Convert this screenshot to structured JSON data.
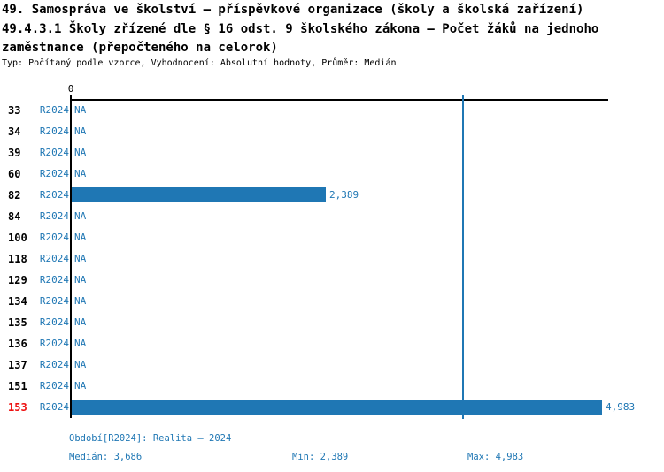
{
  "header": {
    "title_line1": "49. Samospráva ve školství – příspěvkové organizace (školy a školská zařízení)",
    "title_line2": "49.4.3.1 Školy zřízené dle § 16 odst. 9 školského zákona – Počet žáků na jednoho",
    "title_line3": "zaměstnance (přepočteného na celorok)",
    "subtitle": "Typ: Počítaný podle vzorce, Vyhodnocení: Absolutní hodnoty, Průměr: Medián"
  },
  "chart_data": {
    "type": "bar",
    "orientation": "horizontal",
    "xlim": [
      0,
      5050
    ],
    "x_ticks": [
      {
        "value": 0,
        "label": "0"
      }
    ],
    "series_name": "R2024",
    "categories": [
      "33",
      "34",
      "39",
      "60",
      "82",
      "84",
      "100",
      "118",
      "129",
      "134",
      "135",
      "136",
      "137",
      "151",
      "153"
    ],
    "rows": [
      {
        "category": "33",
        "period": "R2024",
        "value": null,
        "value_label": "NA",
        "highlight": false
      },
      {
        "category": "34",
        "period": "R2024",
        "value": null,
        "value_label": "NA",
        "highlight": false
      },
      {
        "category": "39",
        "period": "R2024",
        "value": null,
        "value_label": "NA",
        "highlight": false
      },
      {
        "category": "60",
        "period": "R2024",
        "value": null,
        "value_label": "NA",
        "highlight": false
      },
      {
        "category": "82",
        "period": "R2024",
        "value": 2389,
        "value_label": "2,389",
        "highlight": false
      },
      {
        "category": "84",
        "period": "R2024",
        "value": null,
        "value_label": "NA",
        "highlight": false
      },
      {
        "category": "100",
        "period": "R2024",
        "value": null,
        "value_label": "NA",
        "highlight": false
      },
      {
        "category": "118",
        "period": "R2024",
        "value": null,
        "value_label": "NA",
        "highlight": false
      },
      {
        "category": "129",
        "period": "R2024",
        "value": null,
        "value_label": "NA",
        "highlight": false
      },
      {
        "category": "134",
        "period": "R2024",
        "value": null,
        "value_label": "NA",
        "highlight": false
      },
      {
        "category": "135",
        "period": "R2024",
        "value": null,
        "value_label": "NA",
        "highlight": false
      },
      {
        "category": "136",
        "period": "R2024",
        "value": null,
        "value_label": "NA",
        "highlight": false
      },
      {
        "category": "137",
        "period": "R2024",
        "value": null,
        "value_label": "NA",
        "highlight": false
      },
      {
        "category": "151",
        "period": "R2024",
        "value": null,
        "value_label": "NA",
        "highlight": false
      },
      {
        "category": "153",
        "period": "R2024",
        "value": 4983,
        "value_label": "4,983",
        "highlight": true
      }
    ],
    "median": {
      "value": 3686,
      "label": "3,686"
    },
    "min": {
      "value": 2389,
      "label": "2,389"
    },
    "max": {
      "value": 4983,
      "label": "4,983"
    }
  },
  "colors": {
    "bar_blue": "#1f77b4",
    "text_blue": "#1f77b4",
    "highlight_red": "#ee1111",
    "axis_black": "#000000",
    "median_line_blue": "#1f77b4"
  },
  "footer": {
    "period_label": "Období[R2024]: Realita – 2024",
    "median_label": "Medián: 3,686",
    "min_label": "Min: 2,389",
    "max_label": "Max: 4,983"
  }
}
